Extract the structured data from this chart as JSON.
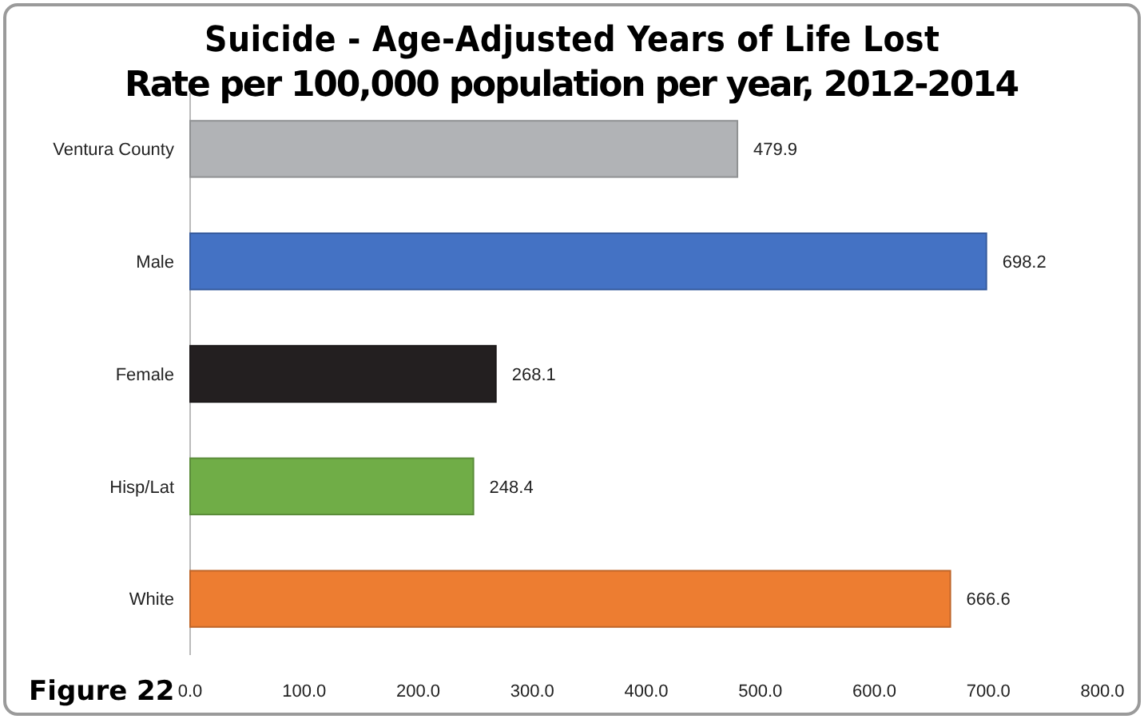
{
  "chart_data": {
    "type": "bar",
    "orientation": "horizontal",
    "title": "Suicide - Age-Adjusted Years of Life Lost",
    "subtitle": "Rate per 100,000 population per year, 2012-2014",
    "categories": [
      "Ventura County",
      "Male",
      "Female",
      "Hisp/Lat",
      "White"
    ],
    "values": [
      479.9,
      698.2,
      268.1,
      248.4,
      666.6
    ],
    "colors": [
      "#b1b3b6",
      "#4472c4",
      "#231f20",
      "#70ad47",
      "#ed7d31"
    ],
    "xlim": [
      0,
      800
    ],
    "xticks": [
      {
        "value": 0,
        "label": "0.0"
      },
      {
        "value": 100,
        "label": "100.0"
      },
      {
        "value": 200,
        "label": "200.0"
      },
      {
        "value": 300,
        "label": "300.0"
      },
      {
        "value": 400,
        "label": "400.0"
      },
      {
        "value": 500,
        "label": "500.0"
      },
      {
        "value": 600,
        "label": "600.0"
      },
      {
        "value": 700,
        "label": "700.0"
      },
      {
        "value": 800,
        "label": "800.0"
      }
    ],
    "data_labels": true,
    "annotations": [
      "Figure 22"
    ]
  }
}
